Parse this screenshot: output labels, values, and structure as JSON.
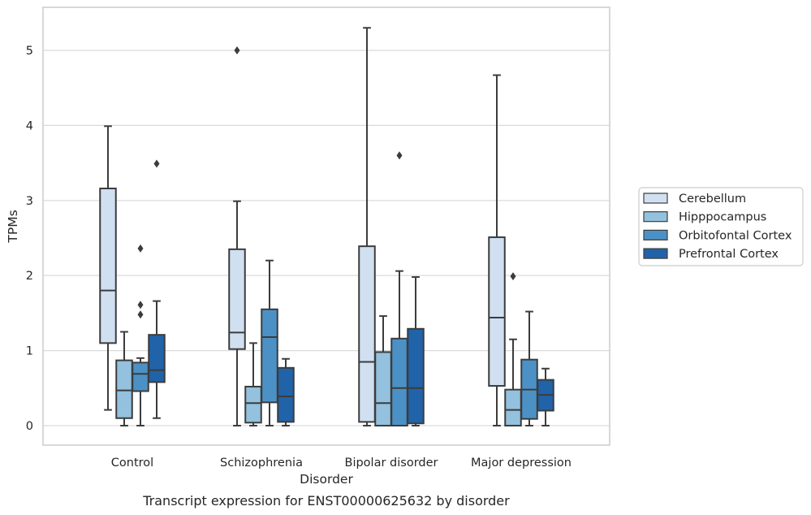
{
  "chart_data": {
    "type": "box",
    "caption": "Transcript expression for ENST00000625632 by disorder",
    "xlabel": "Disorder",
    "ylabel": "TPMs",
    "ylim": [
      -0.25,
      5.58
    ],
    "yticks": [
      "0",
      "1",
      "2",
      "3",
      "4",
      "5"
    ],
    "grid": "horizontal",
    "legend_position": "right, outside plot",
    "categories": [
      "Control",
      "Schizophrenia",
      "Bipolar disorder",
      "Major depression"
    ],
    "colors": {
      "Cerebellum": "#d0e0f1",
      "Hipppocampus": "#93c1de",
      "Orbitofontal Cortex": "#4c91c5",
      "Prefrontal Cortex": "#2163a9",
      "line": "#3c3c3c",
      "grid": "#d9d9d9",
      "frame": "#cccccc"
    },
    "series": [
      {
        "name": "Cerebellum",
        "boxes": [
          {
            "whisker_low": 0.21,
            "q1": 1.1,
            "median": 1.8,
            "q3": 3.16,
            "whisker_high": 3.99,
            "outliers": []
          },
          {
            "whisker_low": 0.0,
            "q1": 1.02,
            "median": 1.24,
            "q3": 2.35,
            "whisker_high": 2.99,
            "outliers": [
              5.0
            ]
          },
          {
            "whisker_low": 0.0,
            "q1": 0.05,
            "median": 0.85,
            "q3": 2.39,
            "whisker_high": 5.3,
            "outliers": []
          },
          {
            "whisker_low": 0.0,
            "q1": 0.53,
            "median": 1.44,
            "q3": 2.51,
            "whisker_high": 4.67,
            "outliers": []
          }
        ]
      },
      {
        "name": "Hipppocampus",
        "boxes": [
          {
            "whisker_low": 0.0,
            "q1": 0.1,
            "median": 0.47,
            "q3": 0.87,
            "whisker_high": 1.25,
            "outliers": []
          },
          {
            "whisker_low": 0.0,
            "q1": 0.04,
            "median": 0.3,
            "q3": 0.52,
            "whisker_high": 1.1,
            "outliers": []
          },
          {
            "whisker_low": 0.0,
            "q1": 0.0,
            "median": 0.3,
            "q3": 0.98,
            "whisker_high": 1.46,
            "outliers": []
          },
          {
            "whisker_low": 0.0,
            "q1": 0.0,
            "median": 0.21,
            "q3": 0.48,
            "whisker_high": 1.15,
            "outliers": [
              1.99
            ]
          }
        ]
      },
      {
        "name": "Orbitofontal Cortex",
        "boxes": [
          {
            "whisker_low": 0.0,
            "q1": 0.46,
            "median": 0.69,
            "q3": 0.84,
            "whisker_high": 0.9,
            "outliers": [
              2.36,
              1.61,
              1.48
            ]
          },
          {
            "whisker_low": 0.0,
            "q1": 0.31,
            "median": 1.18,
            "q3": 1.55,
            "whisker_high": 2.2,
            "outliers": []
          },
          {
            "whisker_low": 0.0,
            "q1": 0.0,
            "median": 0.5,
            "q3": 1.16,
            "whisker_high": 2.06,
            "outliers": [
              3.6
            ]
          },
          {
            "whisker_low": 0.0,
            "q1": 0.09,
            "median": 0.48,
            "q3": 0.88,
            "whisker_high": 1.52,
            "outliers": []
          }
        ]
      },
      {
        "name": "Prefrontal Cortex",
        "boxes": [
          {
            "whisker_low": 0.1,
            "q1": 0.58,
            "median": 0.74,
            "q3": 1.21,
            "whisker_high": 1.66,
            "outliers": [
              3.49
            ]
          },
          {
            "whisker_low": 0.0,
            "q1": 0.05,
            "median": 0.39,
            "q3": 0.77,
            "whisker_high": 0.89,
            "outliers": []
          },
          {
            "whisker_low": 0.0,
            "q1": 0.03,
            "median": 0.5,
            "q3": 1.29,
            "whisker_high": 1.98,
            "outliers": []
          },
          {
            "whisker_low": 0.0,
            "q1": 0.2,
            "median": 0.41,
            "q3": 0.61,
            "whisker_high": 0.76,
            "outliers": []
          }
        ]
      }
    ]
  }
}
